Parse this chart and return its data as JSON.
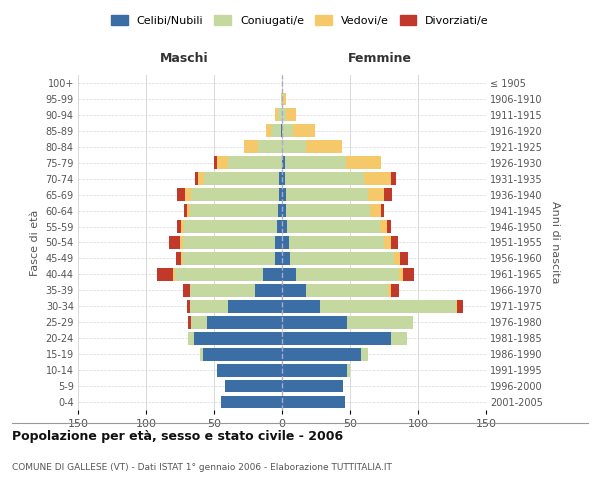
{
  "age_groups": [
    "100+",
    "95-99",
    "90-94",
    "85-89",
    "80-84",
    "75-79",
    "70-74",
    "65-69",
    "60-64",
    "55-59",
    "50-54",
    "45-49",
    "40-44",
    "35-39",
    "30-34",
    "25-29",
    "20-24",
    "15-19",
    "10-14",
    "5-9",
    "0-4"
  ],
  "birth_years": [
    "≤ 1905",
    "1906-1910",
    "1911-1915",
    "1916-1920",
    "1921-1925",
    "1926-1930",
    "1931-1935",
    "1936-1940",
    "1941-1945",
    "1946-1950",
    "1951-1955",
    "1956-1960",
    "1961-1965",
    "1966-1970",
    "1971-1975",
    "1976-1980",
    "1981-1985",
    "1986-1990",
    "1991-1995",
    "1996-2000",
    "2001-2005"
  ],
  "males": {
    "celibi": [
      0,
      0,
      0,
      1,
      0,
      0,
      2,
      2,
      3,
      4,
      5,
      5,
      14,
      20,
      40,
      55,
      65,
      58,
      48,
      42,
      45
    ],
    "coniugati": [
      0,
      1,
      3,
      7,
      18,
      40,
      55,
      65,
      65,
      68,
      68,
      68,
      65,
      48,
      28,
      12,
      4,
      2,
      0,
      0,
      0
    ],
    "vedovi": [
      0,
      0,
      2,
      4,
      10,
      8,
      5,
      4,
      2,
      2,
      2,
      1,
      1,
      0,
      0,
      0,
      0,
      0,
      0,
      0,
      0
    ],
    "divorziati": [
      0,
      0,
      0,
      0,
      0,
      2,
      2,
      6,
      2,
      3,
      8,
      4,
      12,
      5,
      2,
      2,
      0,
      0,
      0,
      0,
      0
    ]
  },
  "females": {
    "nubili": [
      0,
      0,
      0,
      0,
      0,
      2,
      2,
      3,
      3,
      4,
      5,
      6,
      10,
      18,
      28,
      48,
      80,
      58,
      48,
      45,
      46
    ],
    "coniugate": [
      0,
      1,
      3,
      8,
      18,
      45,
      58,
      60,
      62,
      68,
      70,
      76,
      76,
      60,
      100,
      48,
      12,
      5,
      2,
      0,
      0
    ],
    "vedove": [
      0,
      2,
      7,
      16,
      26,
      26,
      20,
      12,
      8,
      5,
      5,
      5,
      3,
      2,
      1,
      0,
      0,
      0,
      0,
      0,
      0
    ],
    "divorziate": [
      0,
      0,
      0,
      0,
      0,
      0,
      4,
      6,
      2,
      3,
      5,
      6,
      8,
      6,
      4,
      0,
      0,
      0,
      0,
      0,
      0
    ]
  },
  "colors": {
    "celibi": "#3A6EA5",
    "coniugati": "#C5D8A0",
    "vedovi": "#F5C96A",
    "divorziati": "#C0392B"
  },
  "title": "Popolazione per età, sesso e stato civile - 2006",
  "subtitle": "COMUNE DI GALLESE (VT) - Dati ISTAT 1° gennaio 2006 - Elaborazione TUTTITALIA.IT",
  "label_maschi": "Maschi",
  "label_femmine": "Femmine",
  "ylabel_left": "Fasce di età",
  "ylabel_right": "Anni di nascita",
  "xlim": 150,
  "background_color": "#ffffff",
  "grid_color": "#d8d8d8",
  "legend_labels": [
    "Celibi/Nubili",
    "Coniugati/e",
    "Vedovi/e",
    "Divorziati/e"
  ]
}
